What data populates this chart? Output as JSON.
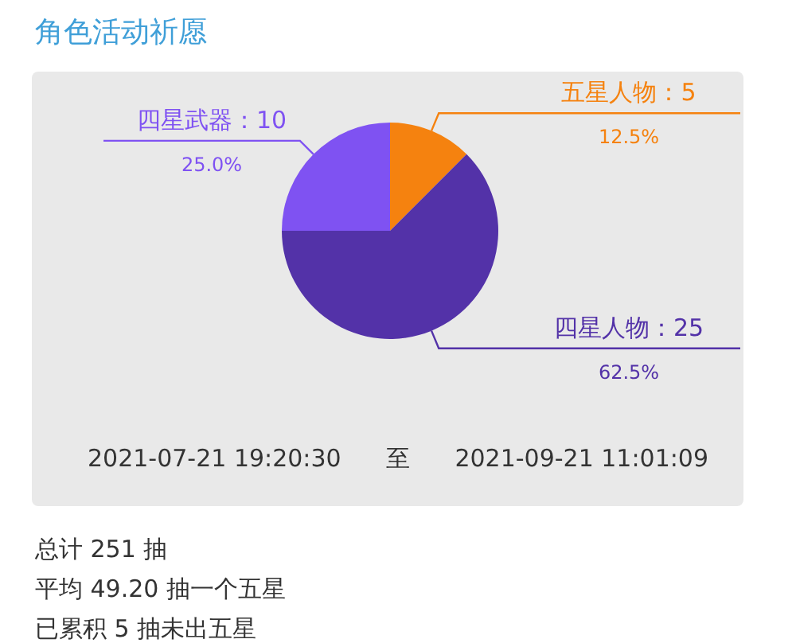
{
  "chart_data": {
    "type": "pie",
    "title": "角色活动祈愿",
    "categories": [
      "五星人物：5",
      "四星人物：25",
      "四星武器：10"
    ],
    "values": [
      12.5,
      62.5,
      25
    ],
    "colors": [
      "#f5820f",
      "#5332a8",
      "#7f52f2"
    ],
    "value_labels": [
      "12.5%",
      "62.5%",
      "25.0%"
    ],
    "annotations": [
      "2021-07-21 19:20:30",
      "至",
      "2021-09-21 11:01:09",
      "总计 251 抽",
      "平均 49.20 抽一个五星",
      "已累积 5 抽未出五星"
    ]
  }
}
